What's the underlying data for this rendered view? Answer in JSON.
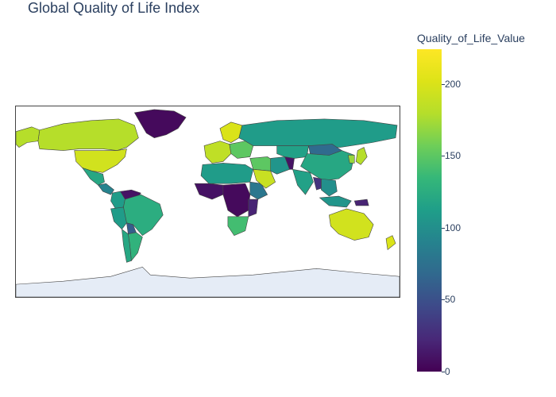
{
  "title": "Global Quality of Life Index",
  "colorbar": {
    "title": "Quality_of_Life_Value",
    "min": 0,
    "max": 224,
    "ticks": [
      "0",
      "50",
      "100",
      "150",
      "200"
    ],
    "tick_values": [
      0,
      50,
      100,
      150,
      200
    ]
  },
  "map_data": {
    "type": "choropleth",
    "projection": "equirectangular",
    "colorscale": "viridis",
    "land_color": "#e5ecf6",
    "border_color": "#444444",
    "regions": [
      {
        "id": "canada",
        "value": 180
      },
      {
        "id": "alaska",
        "value": 180
      },
      {
        "id": "usa",
        "value": 195
      },
      {
        "id": "greenland",
        "value": 5
      },
      {
        "id": "mexico",
        "value": 120
      },
      {
        "id": "central-america",
        "value": 90
      },
      {
        "id": "venezuela",
        "value": 10
      },
      {
        "id": "colombia",
        "value": 110
      },
      {
        "id": "brazil",
        "value": 125
      },
      {
        "id": "bolivia",
        "value": 60
      },
      {
        "id": "peru",
        "value": 110
      },
      {
        "id": "argentina",
        "value": 130
      },
      {
        "id": "chile",
        "value": 120
      },
      {
        "id": "western-europe",
        "value": 185
      },
      {
        "id": "scandinavia",
        "value": 200
      },
      {
        "id": "eastern-europe",
        "value": 150
      },
      {
        "id": "russia",
        "value": 110
      },
      {
        "id": "north-africa",
        "value": 110
      },
      {
        "id": "west-africa",
        "value": 10
      },
      {
        "id": "central-africa",
        "value": 5
      },
      {
        "id": "east-africa",
        "value": 20
      },
      {
        "id": "horn-africa",
        "value": 80
      },
      {
        "id": "south-africa",
        "value": 140
      },
      {
        "id": "middle-east",
        "value": 150
      },
      {
        "id": "saudi-arabia",
        "value": 190
      },
      {
        "id": "iran",
        "value": 105
      },
      {
        "id": "afghanistan",
        "value": 10
      },
      {
        "id": "central-asia",
        "value": 115
      },
      {
        "id": "china",
        "value": 120
      },
      {
        "id": "mongolia",
        "value": 70
      },
      {
        "id": "india",
        "value": 115
      },
      {
        "id": "southeast-asia",
        "value": 100
      },
      {
        "id": "myanmar",
        "value": 30
      },
      {
        "id": "japan",
        "value": 180
      },
      {
        "id": "korea",
        "value": 170
      },
      {
        "id": "indonesia",
        "value": 105
      },
      {
        "id": "papua-new-guinea",
        "value": 20
      },
      {
        "id": "australia",
        "value": 195
      },
      {
        "id": "new-zealand",
        "value": 200
      },
      {
        "id": "antarctica",
        "value": null
      }
    ]
  }
}
